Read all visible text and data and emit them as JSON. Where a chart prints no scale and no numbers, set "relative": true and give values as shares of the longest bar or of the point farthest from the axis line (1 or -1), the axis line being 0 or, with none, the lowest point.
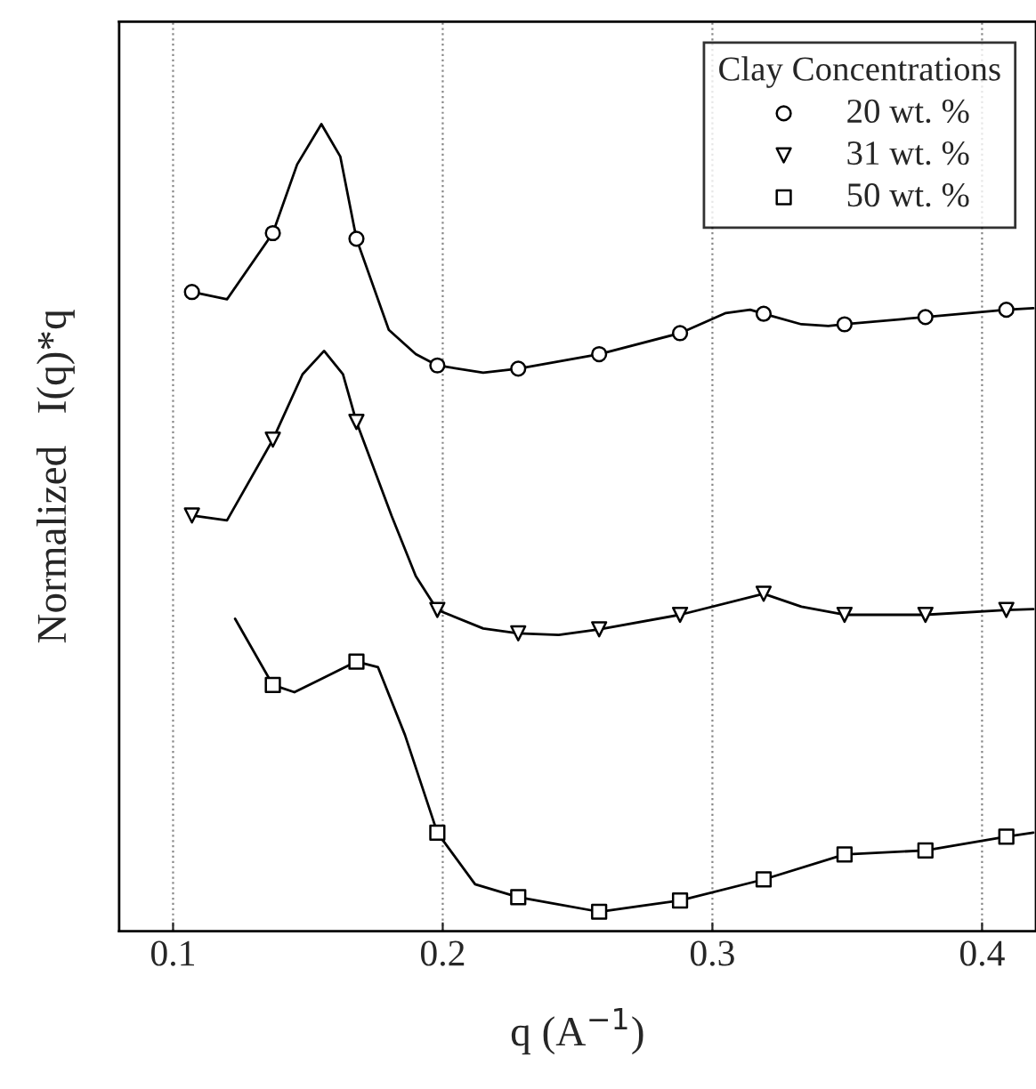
{
  "chart_data": {
    "type": "line",
    "xlabel": "q (A$^{−1}$)",
    "ylabel": "Normalized   I(q)*q",
    "legend_title": "Clay Concentrations",
    "relative": true,
    "xlim": [
      0.08,
      0.42
    ],
    "xticks": [
      0.1,
      0.2,
      0.3,
      0.4
    ],
    "tick_labels": "x",
    "grid": "x",
    "legend": "top right",
    "series": [
      {
        "color": "#000000",
        "marker": "none",
        "x": [
          0.107,
          0.12,
          0.137,
          0.146,
          0.155,
          0.162,
          0.168,
          0.18,
          0.19,
          0.198,
          0.215,
          0.228,
          0.258,
          0.288,
          0.305,
          0.314,
          0.319,
          0.333,
          0.343,
          0.349,
          0.379,
          0.409,
          0.419
        ],
        "values": [
          0.792,
          0.783,
          0.865,
          0.95,
          1.0,
          0.96,
          0.858,
          0.745,
          0.715,
          0.701,
          0.692,
          0.697,
          0.715,
          0.741,
          0.766,
          0.77,
          0.765,
          0.752,
          0.75,
          0.752,
          0.761,
          0.77,
          0.772
        ]
      },
      {
        "color": "#000000",
        "marker": "none",
        "x": [
          0.107,
          0.12,
          0.137,
          0.148,
          0.156,
          0.163,
          0.168,
          0.181,
          0.19,
          0.198,
          0.215,
          0.228,
          0.243,
          0.258,
          0.288,
          0.319,
          0.333,
          0.349,
          0.379,
          0.409,
          0.419
        ],
        "values": [
          0.515,
          0.509,
          0.609,
          0.69,
          0.719,
          0.69,
          0.631,
          0.515,
          0.44,
          0.398,
          0.375,
          0.369,
          0.367,
          0.374,
          0.392,
          0.418,
          0.402,
          0.392,
          0.392,
          0.398,
          0.399
        ]
      },
      {
        "color": "#000000",
        "marker": "none",
        "x": [
          0.123,
          0.137,
          0.145,
          0.168,
          0.176,
          0.186,
          0.198,
          0.212,
          0.228,
          0.258,
          0.288,
          0.319,
          0.349,
          0.379,
          0.409,
          0.419
        ],
        "values": [
          0.387,
          0.305,
          0.296,
          0.334,
          0.327,
          0.243,
          0.122,
          0.058,
          0.042,
          0.024,
          0.038,
          0.064,
          0.095,
          0.1,
          0.117,
          0.122
        ]
      },
      {
        "type": "scatter",
        "name": "20 wt. %",
        "color": "#000000",
        "marker": "circle",
        "x": [
          0.107,
          0.137,
          0.168,
          0.198,
          0.228,
          0.258,
          0.288,
          0.319,
          0.349,
          0.379,
          0.409
        ],
        "values": [
          0.792,
          0.865,
          0.858,
          0.701,
          0.697,
          0.715,
          0.741,
          0.765,
          0.752,
          0.761,
          0.77
        ]
      },
      {
        "type": "scatter",
        "name": "31 wt. %",
        "color": "#000000",
        "marker": "triangle",
        "x": [
          0.107,
          0.137,
          0.168,
          0.198,
          0.228,
          0.258,
          0.288,
          0.319,
          0.349,
          0.379,
          0.409
        ],
        "values": [
          0.515,
          0.609,
          0.631,
          0.398,
          0.369,
          0.374,
          0.392,
          0.418,
          0.392,
          0.392,
          0.398
        ]
      },
      {
        "type": "scatter",
        "name": "50 wt. %",
        "color": "#000000",
        "marker": "square",
        "x": [
          0.137,
          0.168,
          0.198,
          0.228,
          0.258,
          0.288,
          0.319,
          0.349,
          0.379,
          0.409
        ],
        "values": [
          0.305,
          0.334,
          0.122,
          0.042,
          0.024,
          0.038,
          0.064,
          0.095,
          0.1,
          0.117
        ]
      }
    ]
  }
}
